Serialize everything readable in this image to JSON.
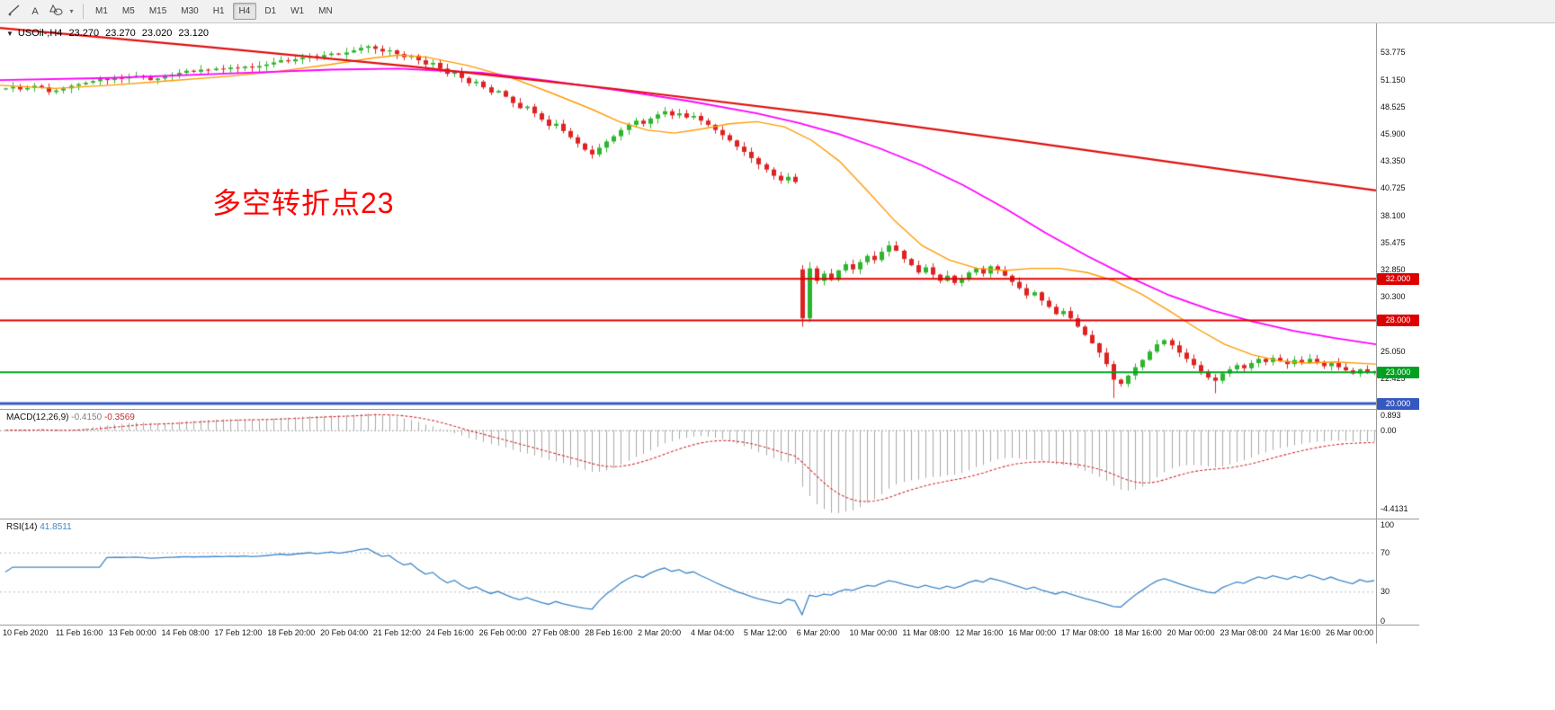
{
  "toolbar": {
    "text_tool_label": "A",
    "caret": "▾",
    "timeframes": [
      "M1",
      "M5",
      "M15",
      "M30",
      "H1",
      "H4",
      "D1",
      "W1",
      "MN"
    ],
    "active_timeframe": "H4",
    "tools": [
      "trendline",
      "text",
      "shapes"
    ]
  },
  "chart": {
    "header": {
      "marker": "▼",
      "title": "USOil-,H4",
      "open": "23.270",
      "high": "23.270",
      "low": "23.020",
      "close": "23.120"
    },
    "annotation": {
      "text": "多空转折点23",
      "color": "#FF0000"
    },
    "price_axis": {
      "labels": [
        "53.775",
        "51.150",
        "48.525",
        "45.900",
        "43.350",
        "40.725",
        "38.100",
        "35.475",
        "32.850",
        "30.300",
        "25.050",
        "22.425"
      ]
    },
    "hlines": [
      {
        "price": 32.0,
        "label": "32.000",
        "color": "#DD0000",
        "width": 2
      },
      {
        "price": 28.0,
        "label": "28.000",
        "color": "#DD0000",
        "width": 2
      },
      {
        "price": 23.0,
        "label": "23.000",
        "color": "#00A020",
        "width": 2
      },
      {
        "price": 20.0,
        "label": "20.000",
        "color": "#3558C0",
        "width": 3
      }
    ]
  },
  "chart_data": {
    "type": "candlestick",
    "symbol": "USOil-",
    "timeframe": "H4",
    "price_range": {
      "max": 56.55,
      "min": 19.49
    },
    "bull_color": "#2DB52D",
    "bear_color": "#DD2222",
    "closes": [
      50.3,
      50.45,
      50.2,
      50.35,
      50.55,
      50.4,
      49.95,
      50.1,
      50.3,
      50.55,
      50.7,
      50.85,
      51.0,
      51.2,
      51.1,
      51.3,
      51.25,
      51.4,
      51.5,
      51.35,
      51.1,
      51.25,
      51.45,
      51.6,
      51.8,
      52.0,
      51.9,
      52.1,
      52.05,
      52.2,
      52.15,
      52.3,
      52.25,
      52.4,
      52.3,
      52.45,
      52.6,
      52.8,
      53.0,
      52.9,
      53.1,
      53.25,
      53.4,
      53.3,
      53.5,
      53.65,
      53.55,
      53.75,
      53.95,
      54.2,
      54.35,
      54.1,
      53.85,
      53.95,
      53.6,
      53.3,
      53.45,
      53.0,
      52.6,
      52.75,
      52.2,
      51.7,
      51.9,
      51.3,
      50.8,
      50.95,
      50.4,
      49.9,
      50.05,
      49.5,
      48.9,
      48.4,
      48.55,
      47.9,
      47.3,
      46.7,
      46.9,
      46.2,
      45.6,
      45.0,
      44.4,
      43.95,
      44.6,
      45.2,
      45.7,
      46.3,
      46.8,
      47.2,
      46.9,
      47.4,
      47.8,
      48.1,
      47.7,
      47.9,
      47.5,
      47.65,
      47.2,
      46.8,
      46.3,
      45.8,
      45.3,
      44.7,
      44.2,
      43.6,
      43.0,
      42.5,
      41.9,
      41.45,
      41.8,
      41.3,
      28.2,
      33.0,
      31.8,
      32.5,
      31.9,
      32.8,
      33.4,
      32.9,
      33.6,
      34.2,
      33.8,
      34.6,
      35.2,
      34.7,
      33.9,
      33.3,
      32.6,
      33.1,
      32.4,
      31.8,
      32.3,
      31.6,
      32.0,
      32.6,
      33.0,
      32.5,
      33.2,
      32.8,
      32.3,
      31.7,
      31.1,
      30.4,
      30.7,
      29.9,
      29.3,
      28.6,
      28.9,
      28.2,
      27.4,
      26.6,
      25.8,
      24.9,
      23.8,
      22.3,
      21.9,
      22.7,
      23.5,
      24.2,
      25.0,
      25.7,
      26.1,
      25.6,
      24.9,
      24.3,
      23.7,
      23.1,
      22.5,
      22.2,
      22.9,
      23.3,
      23.7,
      23.4,
      23.9,
      24.3,
      24.0,
      24.4,
      24.1,
      23.8,
      24.2,
      23.9,
      24.3,
      24.0,
      23.6,
      23.9,
      23.5,
      23.2,
      22.9,
      23.3,
      23.0,
      23.12
    ],
    "open_overrides": {
      "0": 50.2,
      "110": 32.9
    },
    "high_overrides": {
      "50": 54.5,
      "111": 33.6
    },
    "low_overrides": {
      "110": 27.4,
      "153": 20.55,
      "167": 21.0
    },
    "ma_lines": [
      {
        "name": "ma-fast",
        "color": "#FF9900",
        "width": 1.4,
        "points": [
          [
            0,
            50.6
          ],
          [
            0.04,
            50.3
          ],
          [
            0.08,
            50.6
          ],
          [
            0.12,
            51.0
          ],
          [
            0.16,
            51.4
          ],
          [
            0.2,
            51.9
          ],
          [
            0.24,
            52.6
          ],
          [
            0.27,
            53.2
          ],
          [
            0.29,
            53.5
          ],
          [
            0.31,
            53.3
          ],
          [
            0.34,
            52.5
          ],
          [
            0.37,
            51.4
          ],
          [
            0.4,
            49.9
          ],
          [
            0.43,
            48.3
          ],
          [
            0.45,
            47.1
          ],
          [
            0.47,
            46.3
          ],
          [
            0.49,
            46.0
          ],
          [
            0.51,
            46.4
          ],
          [
            0.53,
            46.9
          ],
          [
            0.55,
            47.1
          ],
          [
            0.57,
            46.6
          ],
          [
            0.59,
            45.3
          ],
          [
            0.61,
            43.3
          ],
          [
            0.63,
            40.5
          ],
          [
            0.65,
            37.6
          ],
          [
            0.67,
            35.2
          ],
          [
            0.69,
            33.8
          ],
          [
            0.71,
            33.0
          ],
          [
            0.73,
            32.8
          ],
          [
            0.75,
            33.0
          ],
          [
            0.77,
            33.0
          ],
          [
            0.79,
            32.6
          ],
          [
            0.81,
            31.8
          ],
          [
            0.83,
            30.5
          ],
          [
            0.85,
            28.9
          ],
          [
            0.87,
            27.2
          ],
          [
            0.89,
            25.7
          ],
          [
            0.91,
            24.7
          ],
          [
            0.93,
            24.1
          ],
          [
            0.95,
            23.9
          ],
          [
            0.97,
            24.0
          ],
          [
            1,
            23.8
          ]
        ]
      },
      {
        "name": "ma-mid",
        "color": "#FF00FF",
        "width": 1.8,
        "points": [
          [
            0,
            51.1
          ],
          [
            0.08,
            51.3
          ],
          [
            0.16,
            51.7
          ],
          [
            0.24,
            52.1
          ],
          [
            0.29,
            52.2
          ],
          [
            0.35,
            51.8
          ],
          [
            0.4,
            51.0
          ],
          [
            0.45,
            50.1
          ],
          [
            0.5,
            49.1
          ],
          [
            0.55,
            47.9
          ],
          [
            0.58,
            47.0
          ],
          [
            0.61,
            45.9
          ],
          [
            0.64,
            44.5
          ],
          [
            0.67,
            42.9
          ],
          [
            0.7,
            41.0
          ],
          [
            0.73,
            38.8
          ],
          [
            0.76,
            36.4
          ],
          [
            0.79,
            34.2
          ],
          [
            0.82,
            32.2
          ],
          [
            0.85,
            30.4
          ],
          [
            0.88,
            29.0
          ],
          [
            0.91,
            27.9
          ],
          [
            0.94,
            27.0
          ],
          [
            0.97,
            26.3
          ],
          [
            1,
            25.7
          ]
        ]
      },
      {
        "name": "ma-slow",
        "color": "#E01010",
        "width": 2.2,
        "points": [
          [
            0,
            56.1
          ],
          [
            0.15,
            54.3
          ],
          [
            0.3,
            52.4
          ],
          [
            0.45,
            50.2
          ],
          [
            0.6,
            47.8
          ],
          [
            0.75,
            45.1
          ],
          [
            0.9,
            42.3
          ],
          [
            1,
            40.5
          ]
        ]
      }
    ]
  },
  "macd": {
    "title": "MACD(12,26,9)",
    "value": "-0.4150",
    "signal": "-0.3569",
    "axis_labels": [
      "0.893",
      "0.00",
      "-4.4131"
    ],
    "max": 0.893,
    "min": -4.4131,
    "histogram_color": "#a8a8a8",
    "signal_color": "#D03030"
  },
  "rsi": {
    "title": "RSI(14)",
    "value": "41.8511",
    "period": 14,
    "levels": [
      70,
      30
    ],
    "axis_labels": [
      "100",
      "70",
      "30",
      "0"
    ],
    "line_color": "#3E86C8"
  },
  "time_axis": {
    "labels": [
      "10 Feb 2020",
      "11 Feb 16:00",
      "13 Feb 00:00",
      "14 Feb 08:00",
      "17 Feb 12:00",
      "18 Feb 20:00",
      "20 Feb 04:00",
      "21 Feb 12:00",
      "24 Feb 16:00",
      "26 Feb 00:00",
      "27 Feb 08:00",
      "28 Feb 16:00",
      "2 Mar 20:00",
      "4 Mar 04:00",
      "5 Mar 12:00",
      "6 Mar 20:00",
      "10 Mar 00:00",
      "11 Mar 08:00",
      "12 Mar 16:00",
      "16 Mar 00:00",
      "17 Mar 08:00",
      "18 Mar 16:00",
      "20 Mar 00:00",
      "23 Mar 08:00",
      "24 Mar 16:00",
      "26 Mar 00:00"
    ]
  }
}
